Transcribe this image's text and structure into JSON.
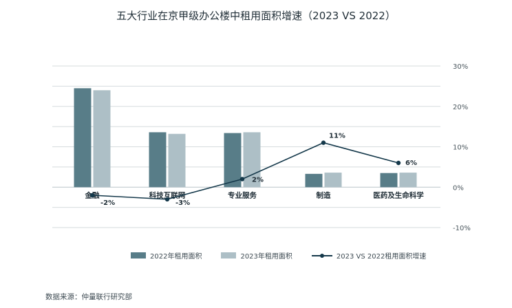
{
  "chart_data": {
    "type": "bar+line",
    "title": "五大行业在京甲级办公楼中租用面积增速（2023 VS 2022）",
    "categories": [
      "金融",
      "科技互联网",
      "专业服务",
      "制造",
      "医药及生命科学"
    ],
    "series": [
      {
        "name": "2022年租用面积",
        "kind": "bar",
        "color": "#587d88",
        "values": [
          24.5,
          13.6,
          13.4,
          3.3,
          3.5
        ]
      },
      {
        "name": "2023年租用面积",
        "kind": "bar",
        "color": "#adbfc6",
        "values": [
          24.0,
          13.2,
          13.6,
          3.6,
          3.6
        ]
      },
      {
        "name": "2023 VS 2022租用面积增速",
        "kind": "line",
        "color": "#14384a",
        "values": [
          -2,
          -3,
          2,
          11,
          6
        ],
        "labels": [
          "-2%",
          "-3%",
          "2%",
          "11%",
          "6%"
        ]
      }
    ],
    "right_axis": {
      "ticks": [
        "30%",
        "20%",
        "10%",
        "0%",
        "-10%"
      ],
      "range": [
        -10,
        30
      ]
    },
    "grid": true,
    "legend": "bottom"
  },
  "source": "数据来源：仲量联行研究部"
}
